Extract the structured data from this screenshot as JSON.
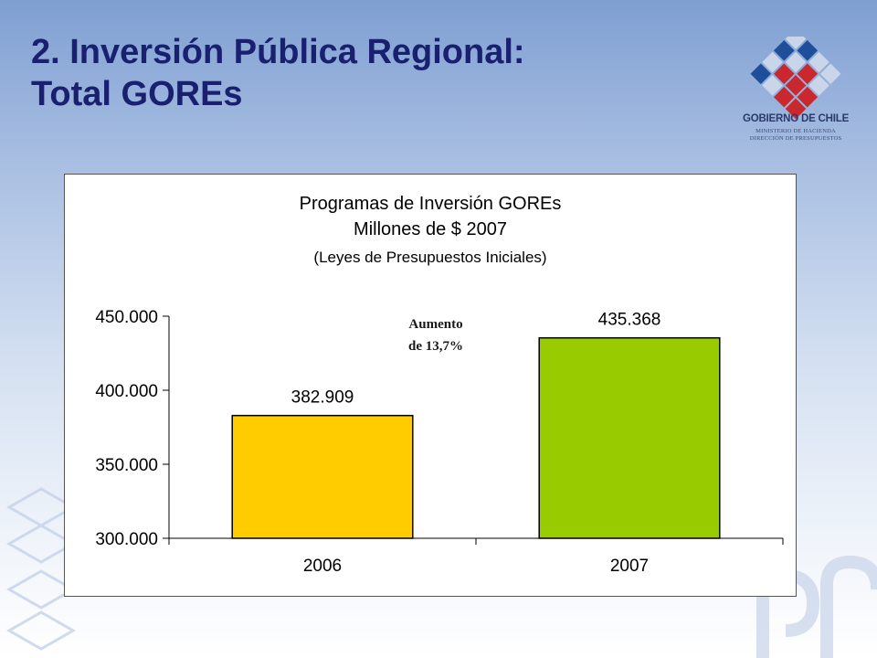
{
  "slide": {
    "title_line1": "2. Inversión Pública Regional:",
    "title_line2": "Total GOREs",
    "logo_text": "GOBIERNO DE CHILE",
    "logo_sub1": "MINISTERIO DE HACIENDA",
    "logo_sub2": "DIRECCIÓN DE PRESUPUESTOS"
  },
  "colors": {
    "title": "#1a2070",
    "bar_2006": "#ffcc00",
    "bar_2007": "#99cc00"
  },
  "chart_data": {
    "type": "bar",
    "title": "Programas de Inversión GOREs",
    "subtitle": "Millones de $ 2007",
    "subtitle2": "(Leyes de Presupuestos Iniciales)",
    "categories": [
      "2006",
      "2007"
    ],
    "values": [
      382909,
      435368
    ],
    "data_labels": [
      "382.909",
      "435.368"
    ],
    "ylim": [
      300000,
      450000
    ],
    "yticks": [
      300000,
      350000,
      400000,
      450000
    ],
    "ytick_labels": [
      "300.000",
      "350.000",
      "400.000",
      "450.000"
    ],
    "xlabel": "",
    "ylabel": "",
    "grid": false,
    "annotation_line1": "Aumento",
    "annotation_line2": "de 13,7%"
  }
}
